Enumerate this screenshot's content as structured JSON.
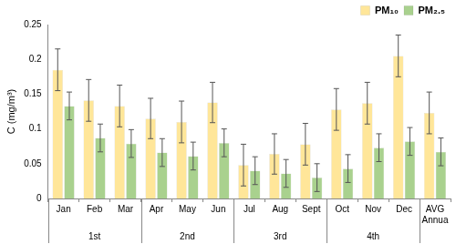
{
  "chart_data": {
    "type": "bar",
    "y_label": "C (mg/m³)",
    "categories": [
      "Jan",
      "Feb",
      "Mar",
      "Apr",
      "May",
      "Jun",
      "Jul",
      "Aug",
      "Sept",
      "Oct",
      "Nov",
      "Dec",
      "AVG Annua"
    ],
    "groups": [
      {
        "label": "1st",
        "categories": [
          "Jan",
          "Feb",
          "Mar"
        ]
      },
      {
        "label": "2nd",
        "categories": [
          "Apr",
          "May",
          "Jun"
        ]
      },
      {
        "label": "3rd",
        "categories": [
          "Jul",
          "Aug",
          "Sept"
        ]
      },
      {
        "label": "4th",
        "categories": [
          "Oct",
          "Nov",
          "Dec"
        ]
      }
    ],
    "series": [
      {
        "name": "PM₁₀",
        "color": "#ffe699",
        "values": [
          0.185,
          0.141,
          0.133,
          0.115,
          0.11,
          0.138,
          0.048,
          0.064,
          0.078,
          0.128,
          0.137,
          0.205,
          0.123
        ],
        "errors": [
          0.03,
          0.03,
          0.03,
          0.029,
          0.03,
          0.029,
          0.03,
          0.029,
          0.03,
          0.03,
          0.03,
          0.03,
          0.03
        ]
      },
      {
        "name": "PM₂.₅",
        "color": "#a9d18e",
        "values": [
          0.133,
          0.087,
          0.079,
          0.066,
          0.061,
          0.08,
          0.04,
          0.036,
          0.03,
          0.043,
          0.073,
          0.082,
          0.067
        ],
        "errors": [
          0.02,
          0.02,
          0.02,
          0.02,
          0.02,
          0.02,
          0.02,
          0.02,
          0.02,
          0.02,
          0.02,
          0.02,
          0.02
        ]
      }
    ],
    "ylim": [
      0,
      0.25
    ],
    "yticks": [
      0,
      0.05,
      0.1,
      0.15,
      0.2,
      0.25
    ],
    "grid": false,
    "legend": "top-right"
  }
}
